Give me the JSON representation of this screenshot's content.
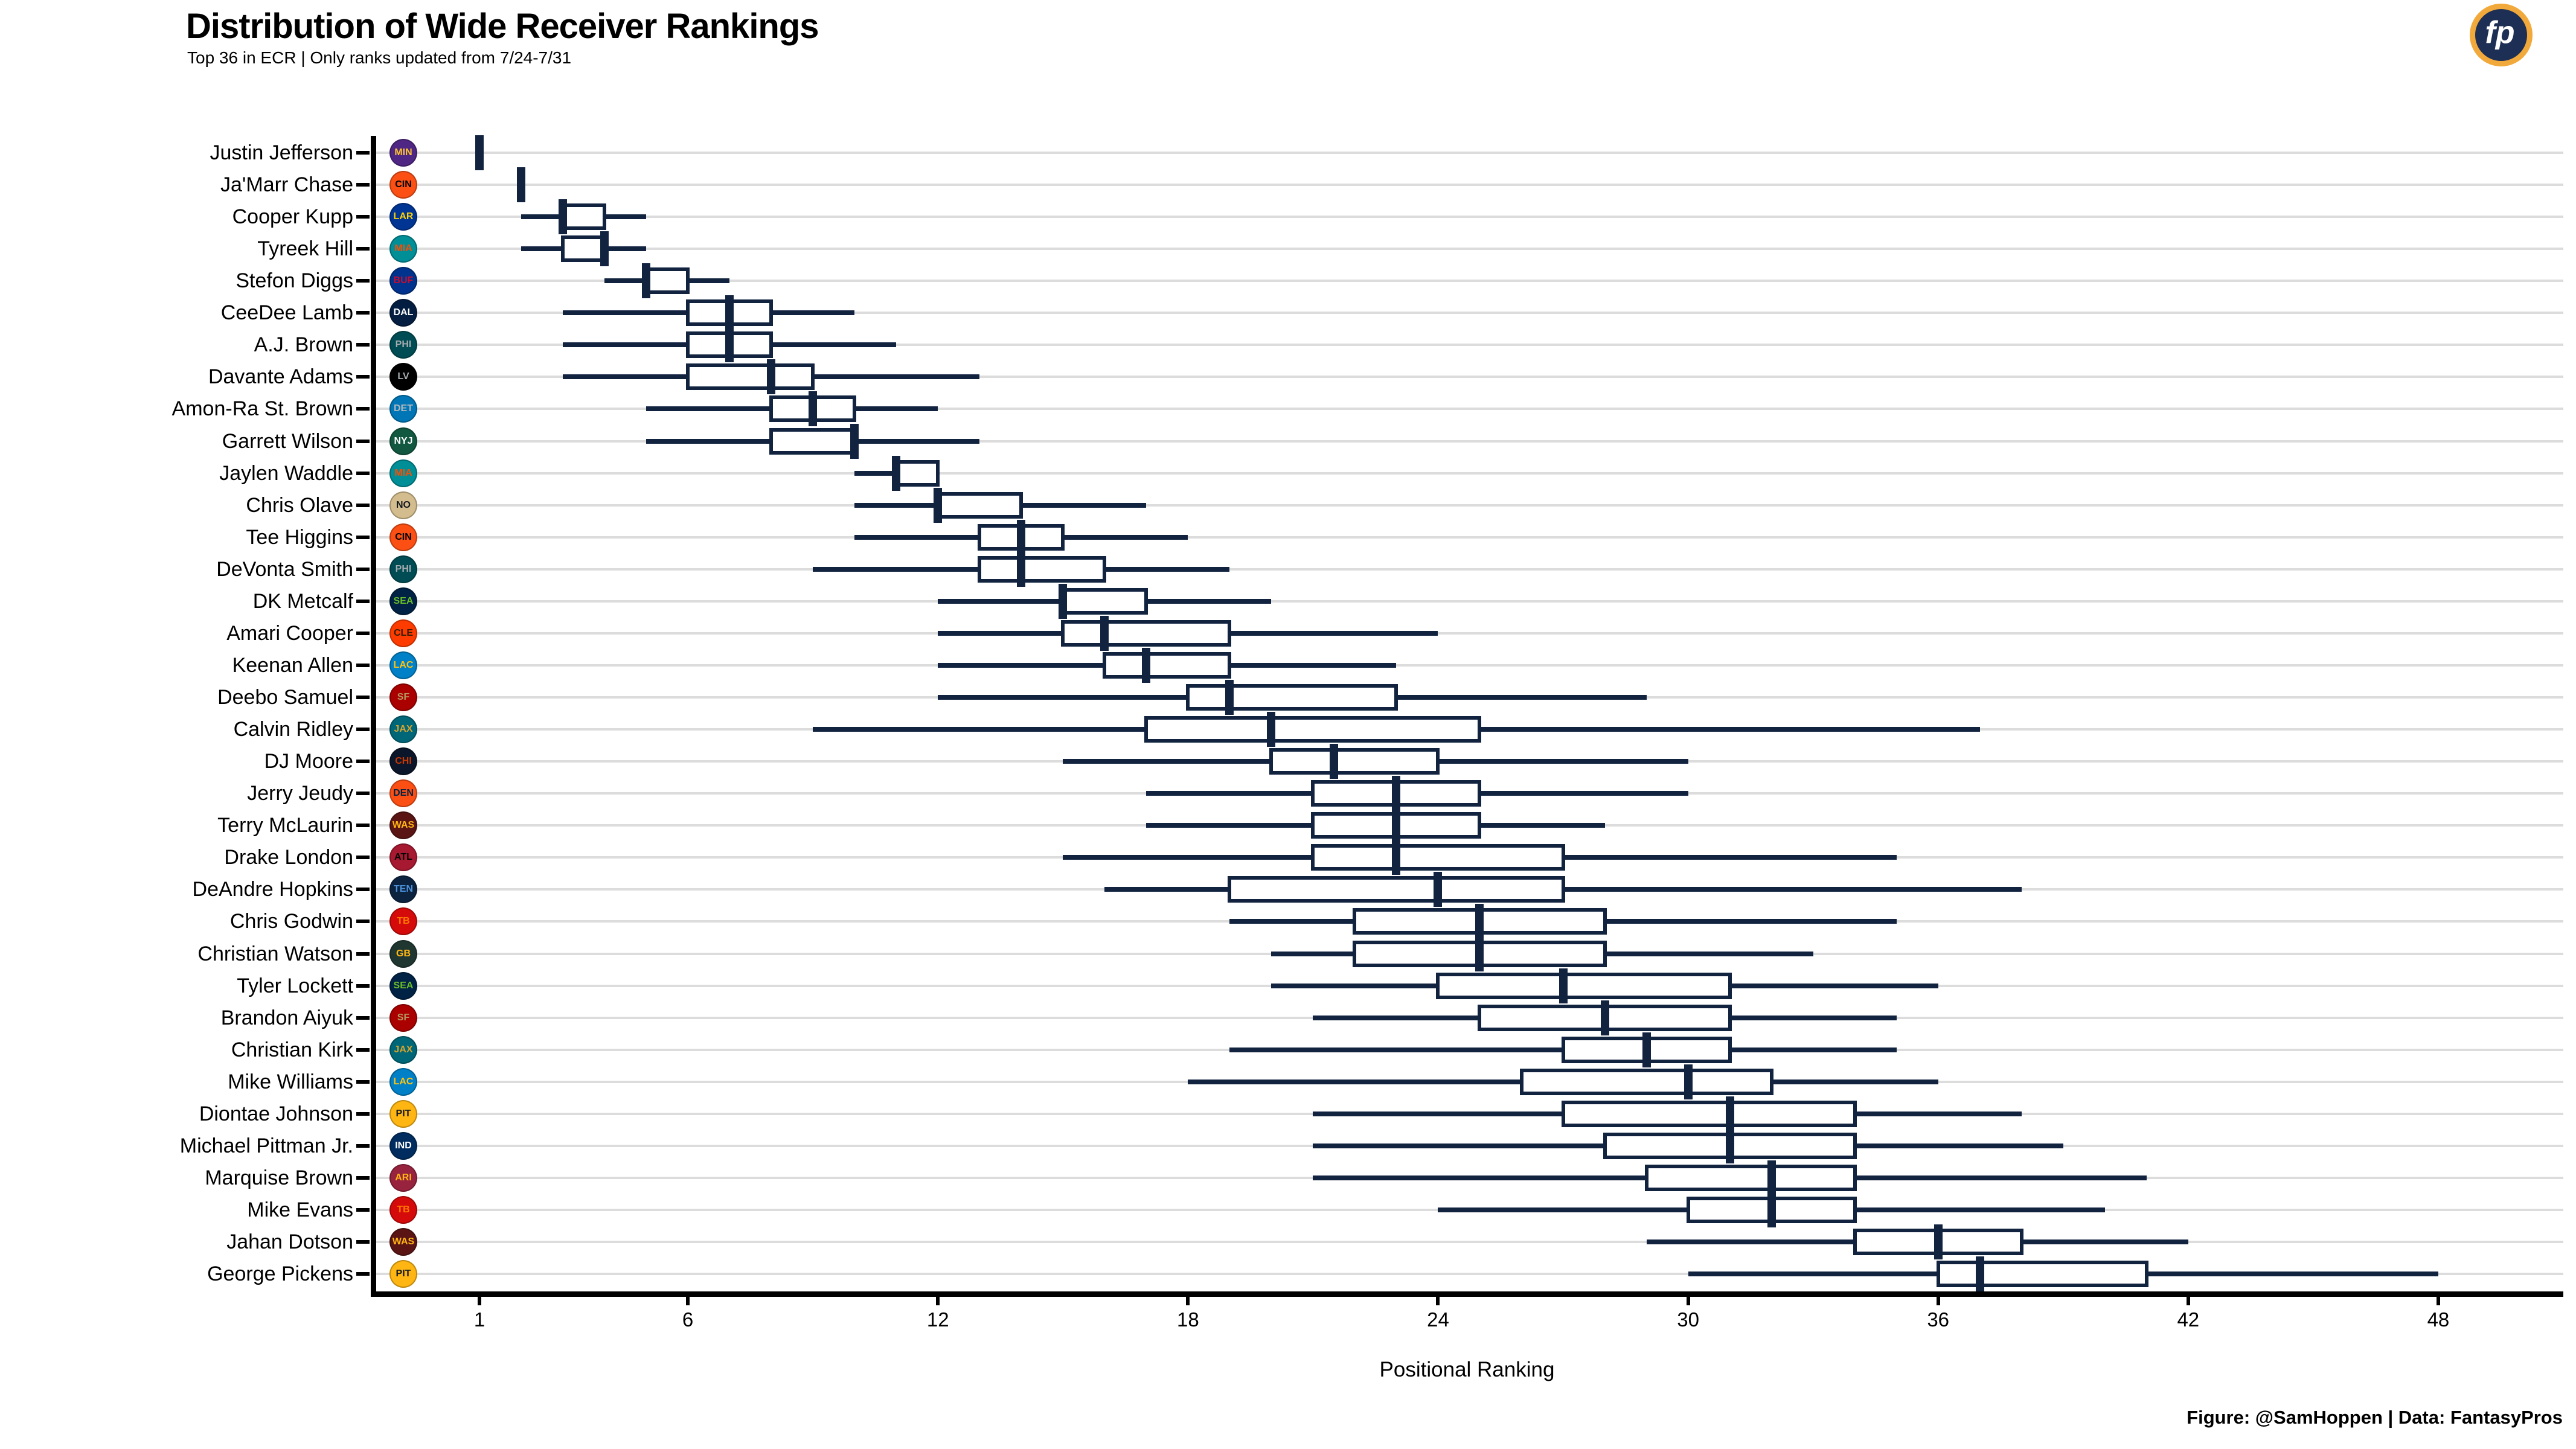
{
  "title": "Distribution of Wide Receiver Rankings",
  "subtitle": "Top 36 in ECR | Only ranks updated from 7/24-7/31",
  "footer": "Figure: @SamHoppen | Data: FantasyPros",
  "logo_text": "fp",
  "chart_data": {
    "type": "boxplot",
    "orientation": "horizontal",
    "title": "Distribution of Wide Receiver Rankings",
    "xlabel": "Positional Ranking",
    "x_ticks": [
      1,
      6,
      12,
      18,
      24,
      30,
      36,
      42,
      48
    ],
    "xlim": [
      -1.5,
      51
    ],
    "grid": "horizontal-row-lines",
    "box_color": "#122340",
    "box_fill": "#ffffff",
    "gridline_color": "#DCDCDC",
    "players": [
      {
        "name": "Justin Jefferson",
        "team": "MIN",
        "min": 1,
        "q1": 1,
        "median": 1,
        "q3": 1,
        "max": 1
      },
      {
        "name": "Ja'Marr Chase",
        "team": "CIN",
        "min": 2,
        "q1": 2,
        "median": 2,
        "q3": 2,
        "max": 2
      },
      {
        "name": "Cooper Kupp",
        "team": "LAR",
        "min": 2,
        "q1": 3,
        "median": 3,
        "q3": 4,
        "max": 5
      },
      {
        "name": "Tyreek Hill",
        "team": "MIA",
        "min": 2,
        "q1": 3,
        "median": 4,
        "q3": 4,
        "max": 5
      },
      {
        "name": "Stefon Diggs",
        "team": "BUF",
        "min": 4,
        "q1": 5,
        "median": 5,
        "q3": 6,
        "max": 7
      },
      {
        "name": "CeeDee Lamb",
        "team": "DAL",
        "min": 3,
        "q1": 6,
        "median": 7,
        "q3": 8,
        "max": 10
      },
      {
        "name": "A.J. Brown",
        "team": "PHI",
        "min": 3,
        "q1": 6,
        "median": 7,
        "q3": 8,
        "max": 11
      },
      {
        "name": "Davante Adams",
        "team": "LV",
        "min": 3,
        "q1": 6,
        "median": 8,
        "q3": 9,
        "max": 13
      },
      {
        "name": "Amon-Ra St. Brown",
        "team": "DET",
        "min": 5,
        "q1": 8,
        "median": 9,
        "q3": 10,
        "max": 12
      },
      {
        "name": "Garrett Wilson",
        "team": "NYJ",
        "min": 5,
        "q1": 8,
        "median": 10,
        "q3": 10,
        "max": 13
      },
      {
        "name": "Jaylen Waddle",
        "team": "MIA",
        "min": 10,
        "q1": 11,
        "median": 11,
        "q3": 12,
        "max": 12
      },
      {
        "name": "Chris Olave",
        "team": "NO",
        "min": 10,
        "q1": 12,
        "median": 12,
        "q3": 14,
        "max": 17
      },
      {
        "name": "Tee Higgins",
        "team": "CIN",
        "min": 10,
        "q1": 13,
        "median": 14,
        "q3": 15,
        "max": 18
      },
      {
        "name": "DeVonta Smith",
        "team": "PHI",
        "min": 9,
        "q1": 13,
        "median": 14,
        "q3": 16,
        "max": 19
      },
      {
        "name": "DK Metcalf",
        "team": "SEA",
        "min": 12,
        "q1": 15,
        "median": 15,
        "q3": 17,
        "max": 20
      },
      {
        "name": "Amari Cooper",
        "team": "CLE",
        "min": 12,
        "q1": 15,
        "median": 16,
        "q3": 19,
        "max": 24
      },
      {
        "name": "Keenan Allen",
        "team": "LAC",
        "min": 12,
        "q1": 16,
        "median": 17,
        "q3": 19,
        "max": 23
      },
      {
        "name": "Deebo Samuel",
        "team": "SF",
        "min": 12,
        "q1": 18,
        "median": 19,
        "q3": 23,
        "max": 29
      },
      {
        "name": "Calvin Ridley",
        "team": "JAX",
        "min": 9,
        "q1": 17,
        "median": 20,
        "q3": 25,
        "max": 37
      },
      {
        "name": "DJ Moore",
        "team": "CHI",
        "min": 15,
        "q1": 20,
        "median": 21.5,
        "q3": 24,
        "max": 30
      },
      {
        "name": "Jerry Jeudy",
        "team": "DEN",
        "min": 17,
        "q1": 21,
        "median": 23,
        "q3": 25,
        "max": 30
      },
      {
        "name": "Terry McLaurin",
        "team": "WAS",
        "min": 17,
        "q1": 21,
        "median": 23,
        "q3": 25,
        "max": 28
      },
      {
        "name": "Drake London",
        "team": "ATL",
        "min": 15,
        "q1": 21,
        "median": 23,
        "q3": 27,
        "max": 35
      },
      {
        "name": "DeAndre Hopkins",
        "team": "TEN",
        "min": 16,
        "q1": 19,
        "median": 24,
        "q3": 27,
        "max": 38
      },
      {
        "name": "Chris Godwin",
        "team": "TB",
        "min": 19,
        "q1": 22,
        "median": 25,
        "q3": 28,
        "max": 35
      },
      {
        "name": "Christian Watson",
        "team": "GB",
        "min": 20,
        "q1": 22,
        "median": 25,
        "q3": 28,
        "max": 33
      },
      {
        "name": "Tyler Lockett",
        "team": "SEA",
        "min": 20,
        "q1": 24,
        "median": 27,
        "q3": 31,
        "max": 36
      },
      {
        "name": "Brandon Aiyuk",
        "team": "SF",
        "min": 21,
        "q1": 25,
        "median": 28,
        "q3": 31,
        "max": 35
      },
      {
        "name": "Christian Kirk",
        "team": "JAX",
        "min": 19,
        "q1": 27,
        "median": 29,
        "q3": 31,
        "max": 35
      },
      {
        "name": "Mike Williams",
        "team": "LAC",
        "min": 18,
        "q1": 26,
        "median": 30,
        "q3": 32,
        "max": 36
      },
      {
        "name": "Diontae Johnson",
        "team": "PIT",
        "min": 21,
        "q1": 27,
        "median": 31,
        "q3": 34,
        "max": 38
      },
      {
        "name": "Michael Pittman Jr.",
        "team": "IND",
        "min": 21,
        "q1": 28,
        "median": 31,
        "q3": 34,
        "max": 39
      },
      {
        "name": "Marquise Brown",
        "team": "ARI",
        "min": 21,
        "q1": 29,
        "median": 32,
        "q3": 34,
        "max": 41
      },
      {
        "name": "Mike Evans",
        "team": "TB",
        "min": 24,
        "q1": 30,
        "median": 32,
        "q3": 34,
        "max": 40
      },
      {
        "name": "Jahan Dotson",
        "team": "WAS",
        "min": 29,
        "q1": 34,
        "median": 36,
        "q3": 38,
        "max": 42
      },
      {
        "name": "George Pickens",
        "team": "PIT",
        "min": 30,
        "q1": 36,
        "median": 37,
        "q3": 41,
        "max": 48
      }
    ]
  },
  "team_colors": {
    "MIN": {
      "bg": "#4F2683",
      "fg": "#FFC62F"
    },
    "CIN": {
      "bg": "#FB4F14",
      "fg": "#000000"
    },
    "LAR": {
      "bg": "#003594",
      "fg": "#FFD100"
    },
    "MIA": {
      "bg": "#008E97",
      "fg": "#FC4C02"
    },
    "BUF": {
      "bg": "#00338D",
      "fg": "#C60C30"
    },
    "DAL": {
      "bg": "#041E42",
      "fg": "#FFFFFF"
    },
    "PHI": {
      "bg": "#004C54",
      "fg": "#A5ACAF"
    },
    "LV": {
      "bg": "#000000",
      "fg": "#A5ACAF"
    },
    "DET": {
      "bg": "#0076B6",
      "fg": "#B0B7BC"
    },
    "NYJ": {
      "bg": "#125740",
      "fg": "#FFFFFF"
    },
    "NO": {
      "bg": "#D3BC8D",
      "fg": "#101820"
    },
    "SEA": {
      "bg": "#002244",
      "fg": "#69BE28"
    },
    "CLE": {
      "bg": "#FF3C00",
      "fg": "#311D00"
    },
    "LAC": {
      "bg": "#0080C6",
      "fg": "#FFC20E"
    },
    "SF": {
      "bg": "#AA0000",
      "fg": "#B3995D"
    },
    "JAX": {
      "bg": "#006778",
      "fg": "#D7A22A"
    },
    "CHI": {
      "bg": "#0B162A",
      "fg": "#C83803"
    },
    "DEN": {
      "bg": "#FB4F14",
      "fg": "#002244"
    },
    "WAS": {
      "bg": "#5A1414",
      "fg": "#FFB612"
    },
    "ATL": {
      "bg": "#A71930",
      "fg": "#000000"
    },
    "TEN": {
      "bg": "#0C2340",
      "fg": "#4B92DB"
    },
    "TB": {
      "bg": "#D50A0A",
      "fg": "#FF7900"
    },
    "GB": {
      "bg": "#203731",
      "fg": "#FFB612"
    },
    "PIT": {
      "bg": "#FFB612",
      "fg": "#101820"
    },
    "IND": {
      "bg": "#002C5F",
      "fg": "#FFFFFF"
    },
    "ARI": {
      "bg": "#97233F",
      "fg": "#FFB612"
    }
  }
}
